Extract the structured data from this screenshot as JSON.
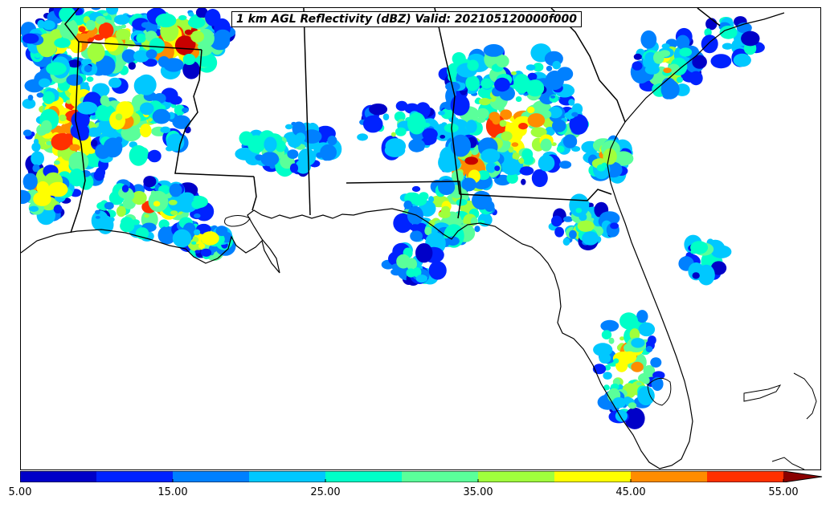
{
  "title": "1 km AGL Reflectivity (dBZ) Valid: 202105120000f000",
  "colorbar": {
    "min": 5,
    "max": 55,
    "extend": "max",
    "bounds": [
      5,
      10,
      15,
      20,
      25,
      30,
      35,
      40,
      45,
      50,
      55
    ],
    "colors": [
      "#0000c8",
      "#0022ff",
      "#0080ff",
      "#00c8ff",
      "#00ffc8",
      "#5aff9a",
      "#a0ff3c",
      "#ffff00",
      "#ff8c00",
      "#ff3000",
      "#c80000",
      "#8a0000"
    ],
    "tick_labels": [
      "5.00",
      "15.00",
      "25.00",
      "35.00",
      "45.00",
      "55.00"
    ],
    "tick_values": [
      5,
      15,
      25,
      35,
      45,
      55
    ]
  },
  "colors": {
    "coast": "#000000",
    "state": "#000000",
    "background": "#ffffff"
  }
}
